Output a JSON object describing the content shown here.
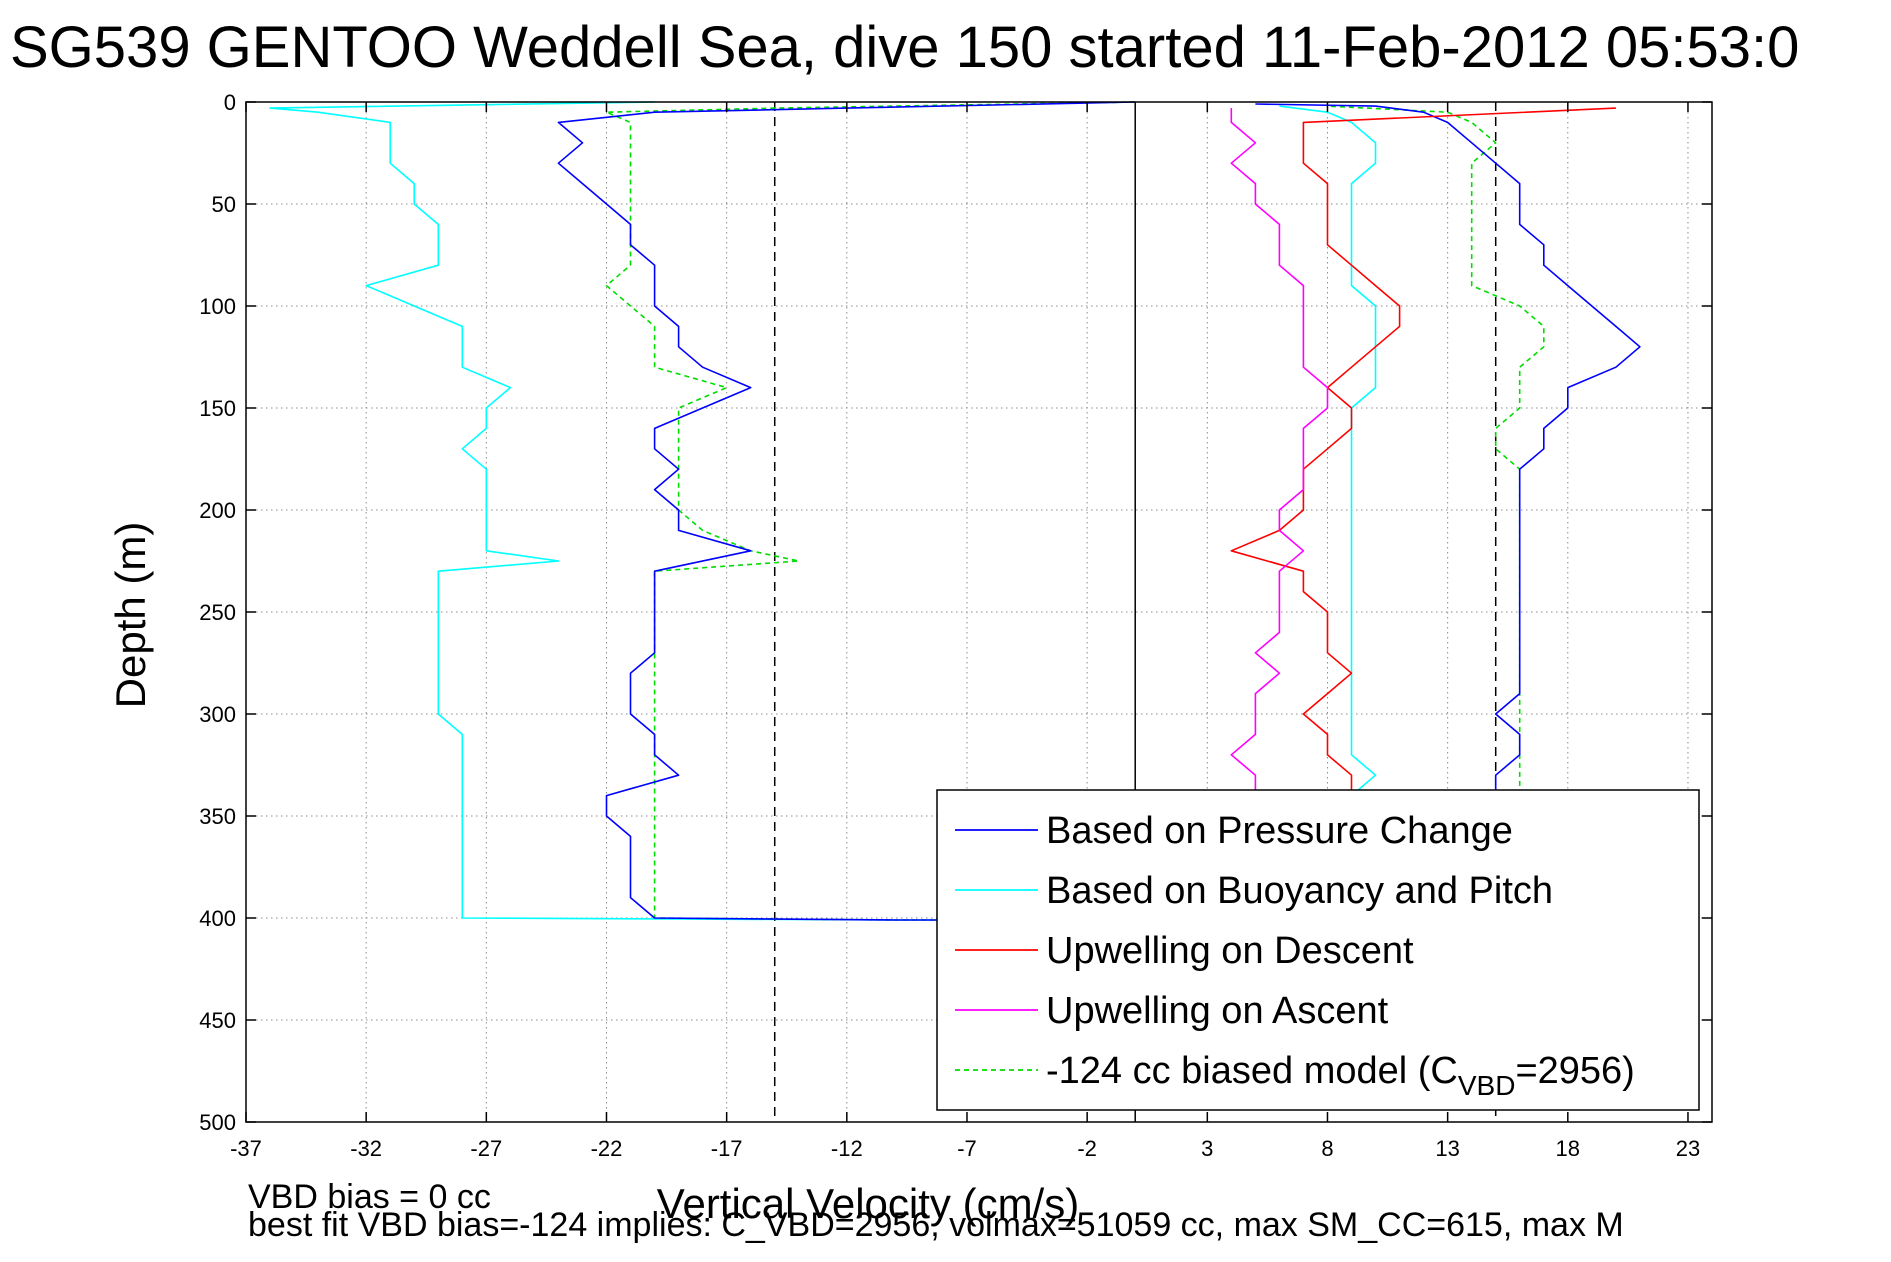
{
  "chart_data": {
    "type": "line",
    "title": "SG539 GENTOO Weddell Sea, dive 150 started 11-Feb-2012 05:53:0",
    "xlabel": "Vertical Velocity (cm/s)",
    "ylabel": "Depth (m)",
    "xlim": [
      -37,
      24
    ],
    "ylim": [
      0,
      500
    ],
    "y_reversed": true,
    "grid": true,
    "xticks": [
      -37,
      -32,
      -27,
      -22,
      -17,
      -12,
      -7,
      -2,
      3,
      8,
      13,
      18,
      23
    ],
    "yticks": [
      0,
      50,
      100,
      150,
      200,
      250,
      300,
      350,
      400,
      450,
      500
    ],
    "reference_lines": [
      {
        "style": "dashed",
        "x": -15
      },
      {
        "style": "solid",
        "x": 0
      },
      {
        "style": "dashed",
        "x": 15
      }
    ],
    "legend_position": "bottom-right",
    "legend": [
      {
        "text": "Based on Pressure Change",
        "color": "#0000ff",
        "dash": false
      },
      {
        "text": "Based on Buoyancy and Pitch",
        "color": "#00ffff",
        "dash": false
      },
      {
        "text": "Upwelling on Descent",
        "color": "#ff0000",
        "dash": false
      },
      {
        "text": "Upwelling on Ascent",
        "color": "#ff00ff",
        "dash": false
      },
      {
        "text_prefix": "-124 cc biased model (C",
        "text_sub": "VBD",
        "text_suffix": "=2956)",
        "color": "#00dd00",
        "dash": true
      }
    ],
    "series": [
      {
        "name": "Based on Pressure Change",
        "color": "#0000ff",
        "depth": [
          0,
          3,
          5,
          10,
          20,
          30,
          40,
          50,
          60,
          70,
          80,
          90,
          100,
          110,
          120,
          130,
          140,
          150,
          160,
          170,
          180,
          190,
          200,
          210,
          220,
          230,
          240,
          250,
          260,
          270,
          280,
          290,
          300,
          310,
          320,
          330,
          340,
          350,
          360,
          370,
          380,
          390,
          400,
          401,
          401,
          390,
          380,
          370,
          360,
          350,
          340,
          330,
          320,
          310,
          300,
          290,
          280,
          270,
          260,
          250,
          240,
          230,
          220,
          210,
          200,
          190,
          180,
          170,
          160,
          150,
          140,
          130,
          120,
          110,
          100,
          90,
          80,
          70,
          60,
          50,
          40,
          30,
          20,
          10,
          5,
          2,
          1
        ],
        "velocity": [
          0,
          -12,
          -20,
          -24,
          -23,
          -24,
          -23,
          -22,
          -21,
          -21,
          -20,
          -20,
          -20,
          -19,
          -19,
          -18,
          -16,
          -18,
          -20,
          -20,
          -19,
          -20,
          -19,
          -19,
          -16,
          -20,
          -20,
          -20,
          -20,
          -20,
          -21,
          -21,
          -21,
          -20,
          -20,
          -19,
          -22,
          -22,
          -21,
          -21,
          -21,
          -21,
          -20,
          -10,
          0,
          16,
          16,
          16,
          16,
          16,
          15,
          15,
          16,
          16,
          15,
          16,
          16,
          16,
          16,
          16,
          16,
          16,
          16,
          16,
          16,
          16,
          16,
          17,
          17,
          18,
          18,
          20,
          21,
          20,
          19,
          18,
          17,
          17,
          16,
          16,
          16,
          15,
          14,
          13,
          12,
          10,
          5
        ]
      },
      {
        "name": "Based on Buoyancy and Pitch",
        "color": "#00ffff",
        "depth": [
          0,
          3,
          5,
          10,
          20,
          30,
          40,
          50,
          60,
          70,
          80,
          90,
          100,
          110,
          120,
          130,
          140,
          150,
          160,
          170,
          180,
          190,
          200,
          210,
          220,
          225,
          230,
          240,
          250,
          260,
          270,
          280,
          290,
          300,
          310,
          320,
          330,
          340,
          350,
          360,
          370,
          380,
          390,
          400,
          401,
          401,
          390,
          380,
          370,
          360,
          350,
          340,
          330,
          320,
          310,
          300,
          290,
          280,
          270,
          260,
          250,
          240,
          230,
          220,
          210,
          200,
          190,
          180,
          170,
          160,
          150,
          140,
          130,
          120,
          110,
          100,
          90,
          80,
          70,
          60,
          50,
          40,
          30,
          20,
          10,
          5,
          2
        ],
        "velocity": [
          -20,
          -36,
          -34,
          -31,
          -31,
          -31,
          -30,
          -30,
          -29,
          -29,
          -29,
          -32,
          -30,
          -28,
          -28,
          -28,
          -26,
          -27,
          -27,
          -28,
          -27,
          -27,
          -27,
          -27,
          -27,
          -24,
          -29,
          -29,
          -29,
          -29,
          -29,
          -29,
          -29,
          -29,
          -28,
          -28,
          -28,
          -28,
          -28,
          -28,
          -28,
          -28,
          -28,
          -28,
          -10,
          0,
          9,
          9,
          9,
          9,
          9,
          9,
          10,
          9,
          9,
          9,
          9,
          9,
          9,
          9,
          9,
          9,
          9,
          9,
          9,
          9,
          9,
          9,
          9,
          9,
          9,
          10,
          10,
          10,
          10,
          10,
          9,
          9,
          9,
          9,
          9,
          9,
          10,
          10,
          9,
          8,
          6
        ]
      },
      {
        "name": "Upwelling on Descent",
        "color": "#ff0000",
        "depth": [
          3,
          10,
          20,
          30,
          40,
          50,
          60,
          70,
          80,
          90,
          100,
          110,
          120,
          130,
          140,
          150,
          160,
          170,
          180,
          190,
          200,
          210,
          220,
          230,
          240,
          250,
          260,
          270,
          280,
          290,
          300,
          310,
          320,
          330,
          340,
          350
        ],
        "velocity": [
          20,
          7,
          7,
          7,
          8,
          8,
          8,
          8,
          9,
          10,
          11,
          11,
          10,
          9,
          8,
          9,
          9,
          8,
          7,
          7,
          7,
          6,
          4,
          7,
          7,
          8,
          8,
          8,
          9,
          8,
          7,
          8,
          8,
          9,
          9,
          10
        ]
      },
      {
        "name": "Upwelling on Ascent",
        "color": "#ff00ff",
        "depth": [
          3,
          10,
          20,
          30,
          40,
          50,
          60,
          70,
          80,
          90,
          100,
          110,
          120,
          130,
          140,
          150,
          160,
          170,
          180,
          190,
          200,
          210,
          220,
          230,
          240,
          250,
          260,
          270,
          280,
          290,
          300,
          310,
          320,
          330,
          340,
          350
        ],
        "velocity": [
          4,
          4,
          5,
          4,
          5,
          5,
          6,
          6,
          6,
          7,
          7,
          7,
          7,
          7,
          8,
          8,
          7,
          7,
          7,
          7,
          6,
          6,
          7,
          6,
          6,
          6,
          6,
          5,
          6,
          5,
          5,
          5,
          4,
          5,
          5,
          6
        ]
      },
      {
        "name": "-124 cc biased model (CVBD=2956)",
        "color": "#00dd00",
        "dash": true,
        "depth": [
          0,
          3,
          5,
          10,
          20,
          30,
          40,
          50,
          60,
          70,
          80,
          90,
          100,
          110,
          120,
          130,
          140,
          150,
          160,
          170,
          180,
          190,
          200,
          210,
          220,
          225,
          230,
          240,
          250,
          260,
          270,
          280,
          290,
          300,
          310,
          320,
          330,
          340,
          350,
          360,
          370,
          380,
          390,
          400,
          401,
          401,
          390,
          380,
          370,
          360,
          350,
          340,
          330,
          320,
          310,
          300,
          290,
          280,
          270,
          260,
          250,
          240,
          230,
          220,
          210,
          200,
          190,
          180,
          170,
          160,
          150,
          140,
          130,
          120,
          110,
          100,
          90,
          80,
          70,
          60,
          50,
          40,
          30,
          20,
          10,
          5,
          2
        ],
        "velocity": [
          0,
          -15,
          -22,
          -21,
          -21,
          -21,
          -21,
          -21,
          -21,
          -21,
          -21,
          -22,
          -21,
          -20,
          -20,
          -20,
          -17,
          -19,
          -19,
          -19,
          -19,
          -19,
          -19,
          -18,
          -16,
          -14,
          -20,
          -20,
          -20,
          -20,
          -20,
          -20,
          -20,
          -20,
          -20,
          -20,
          -20,
          -20,
          -20,
          -20,
          -20,
          -20,
          -20,
          -20,
          -10,
          0,
          16,
          16,
          16,
          16,
          16,
          16,
          16,
          16,
          16,
          16,
          16,
          16,
          16,
          16,
          16,
          16,
          16,
          16,
          16,
          16,
          16,
          16,
          15,
          15,
          16,
          16,
          16,
          17,
          17,
          16,
          14,
          14,
          14,
          14,
          14,
          14,
          14,
          15,
          14,
          13,
          8
        ]
      }
    ],
    "footer_lines": [
      "VBD bias = 0 cc",
      "best fit VBD bias=-124 implies: C_VBD=2956, volmax=51059 cc, max SM_CC=615, max M"
    ]
  }
}
